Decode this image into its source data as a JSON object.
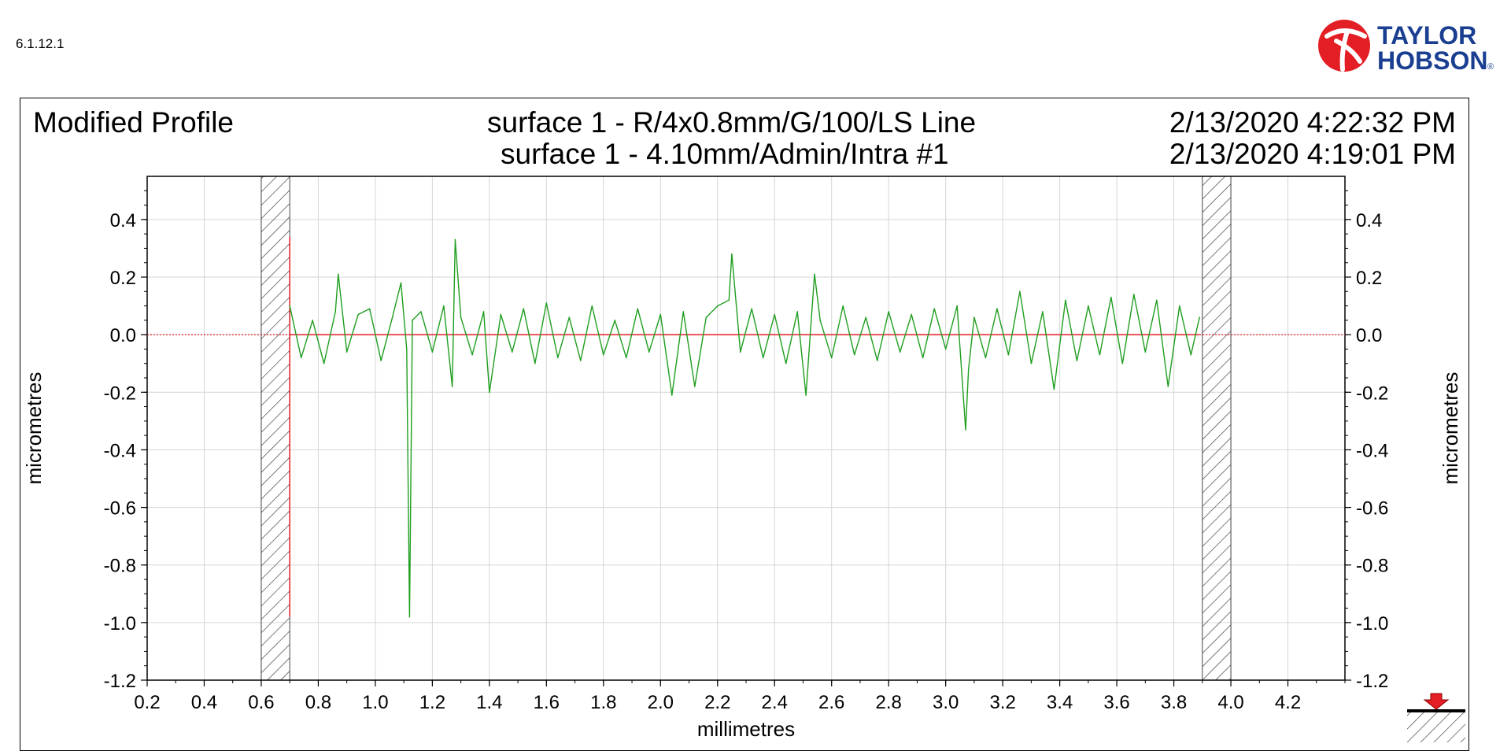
{
  "version": "6.1.12.1",
  "logo": {
    "line1": "TAYLOR",
    "line2": "HOBSON",
    "registered": "®",
    "brand_color": "#e31e25"
  },
  "header": {
    "title": "Modified Profile",
    "subtitle_line1": "surface 1 - R/4x0.8mm/G/100/LS Line",
    "subtitle_line2": "surface 1 - 4.10mm/Admin/Intra #1",
    "timestamp1": "2/13/2020 4:22:32 PM",
    "timestamp2": "2/13/2020 4:19:01 PM"
  },
  "chart_data": {
    "type": "line",
    "xlabel": "millimetres",
    "ylabel_left": "micrometres",
    "ylabel_right": "micrometres",
    "xlim": [
      0.2,
      4.4
    ],
    "ylim": [
      -1.2,
      0.55
    ],
    "x_ticks": [
      "0.2",
      "0.4",
      "0.6",
      "0.8",
      "1.0",
      "1.2",
      "1.4",
      "1.6",
      "1.8",
      "2.0",
      "2.2",
      "2.4",
      "2.6",
      "2.8",
      "3.0",
      "3.2",
      "3.4",
      "3.6",
      "3.8",
      "4.0",
      "4.2"
    ],
    "y_ticks": [
      "0.4",
      "0.2",
      "0.0",
      "-0.2",
      "-0.4",
      "-0.6",
      "-0.8",
      "-1.0",
      "-1.2"
    ],
    "grid": true,
    "excluded_regions": [
      [
        0.6,
        0.7
      ],
      [
        3.9,
        4.0
      ]
    ],
    "reference_line": {
      "y": 0.0,
      "color": "#e31e25"
    },
    "series": [
      {
        "color": "#1f9e1f",
        "x": [
          0.7,
          0.74,
          0.78,
          0.82,
          0.86,
          0.87,
          0.9,
          0.94,
          0.98,
          1.02,
          1.06,
          1.09,
          1.11,
          1.12,
          1.13,
          1.16,
          1.2,
          1.24,
          1.27,
          1.28,
          1.3,
          1.34,
          1.38,
          1.4,
          1.44,
          1.48,
          1.52,
          1.56,
          1.6,
          1.64,
          1.68,
          1.72,
          1.76,
          1.8,
          1.84,
          1.88,
          1.92,
          1.96,
          2.0,
          2.04,
          2.08,
          2.12,
          2.16,
          2.2,
          2.24,
          2.25,
          2.28,
          2.32,
          2.36,
          2.4,
          2.44,
          2.48,
          2.51,
          2.54,
          2.56,
          2.6,
          2.64,
          2.68,
          2.72,
          2.76,
          2.8,
          2.84,
          2.88,
          2.92,
          2.96,
          3.0,
          3.04,
          3.07,
          3.08,
          3.1,
          3.14,
          3.18,
          3.22,
          3.26,
          3.3,
          3.34,
          3.38,
          3.42,
          3.46,
          3.5,
          3.54,
          3.58,
          3.62,
          3.66,
          3.7,
          3.74,
          3.78,
          3.82,
          3.86,
          3.89
        ],
        "y": [
          0.1,
          -0.08,
          0.05,
          -0.1,
          0.08,
          0.21,
          -0.06,
          0.07,
          0.09,
          -0.09,
          0.06,
          0.18,
          -0.05,
          -0.98,
          0.05,
          0.08,
          -0.06,
          0.1,
          -0.18,
          0.33,
          0.06,
          -0.07,
          0.08,
          -0.2,
          0.07,
          -0.06,
          0.09,
          -0.1,
          0.11,
          -0.08,
          0.06,
          -0.09,
          0.1,
          -0.07,
          0.05,
          -0.08,
          0.09,
          -0.06,
          0.07,
          -0.21,
          0.08,
          -0.18,
          0.06,
          0.1,
          0.12,
          0.28,
          -0.06,
          0.09,
          -0.08,
          0.07,
          -0.1,
          0.08,
          -0.21,
          0.21,
          0.05,
          -0.08,
          0.1,
          -0.07,
          0.06,
          -0.09,
          0.08,
          -0.06,
          0.07,
          -0.08,
          0.09,
          -0.05,
          0.1,
          -0.33,
          -0.12,
          0.06,
          -0.08,
          0.09,
          -0.07,
          0.15,
          -0.1,
          0.08,
          -0.19,
          0.12,
          -0.09,
          0.1,
          -0.07,
          0.13,
          -0.1,
          0.14,
          -0.06,
          0.12,
          -0.18,
          0.1,
          -0.07,
          0.06
        ]
      }
    ]
  }
}
